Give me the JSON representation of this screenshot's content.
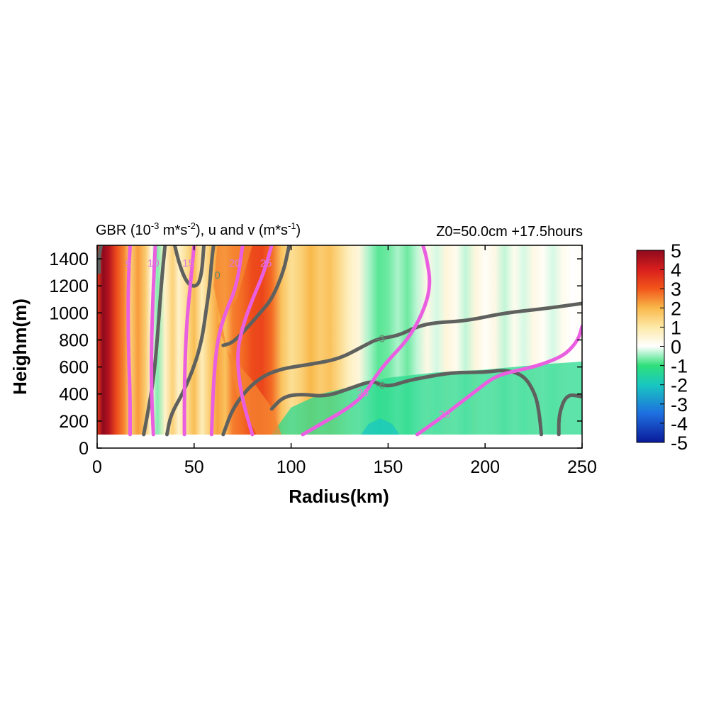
{
  "chart_data": {
    "type": "heatmap",
    "title": "GBR (10-3 m*s-2), u and v (m*s-1)",
    "title_parts": {
      "base1": "GBR (10",
      "sup1": "-3",
      "base2": " m*s",
      "sup2": "-2",
      "base3": "), u and v (m*s",
      "sup3": "-1",
      "base4": ")"
    },
    "subtitle": "Z0=50.0cm  +17.5hours",
    "xlabel": "Radius(km)",
    "ylabel": "Heighm(m)",
    "xlim": [
      0,
      250
    ],
    "ylim": [
      0,
      1500
    ],
    "data_ylim": [
      100,
      1500
    ],
    "xticks": [
      0,
      50,
      100,
      150,
      200,
      250
    ],
    "yticks": [
      0,
      200,
      400,
      600,
      800,
      1000,
      1200,
      1400
    ],
    "colorbar": {
      "ticks": [
        5,
        4,
        3,
        2,
        1,
        0,
        -1,
        -2,
        -3,
        -4,
        -5
      ],
      "range": [
        -5,
        5
      ],
      "stops": [
        {
          "v": -5,
          "color": "#0a1a9a"
        },
        {
          "v": -3.5,
          "color": "#1e6fe0"
        },
        {
          "v": -2,
          "color": "#19c7c0"
        },
        {
          "v": -1,
          "color": "#2fe07a"
        },
        {
          "v": 0,
          "color": "#ffffff"
        },
        {
          "v": 1,
          "color": "#fde9a8"
        },
        {
          "v": 2,
          "color": "#f9b84a"
        },
        {
          "v": 3,
          "color": "#f2561a"
        },
        {
          "v": 4,
          "color": "#d91e1e"
        },
        {
          "v": 5,
          "color": "#8e0a1e"
        }
      ]
    },
    "heatmap_columns": [
      {
        "x": 0,
        "v": 3.5
      },
      {
        "x": 3,
        "v": 5
      },
      {
        "x": 6,
        "v": 4.5
      },
      {
        "x": 10,
        "v": 3.2
      },
      {
        "x": 14,
        "v": 2.5
      },
      {
        "x": 17,
        "v": 1.5
      },
      {
        "x": 21,
        "v": 2.3
      },
      {
        "x": 25,
        "v": 1.6
      },
      {
        "x": 28,
        "v": 0.3
      },
      {
        "x": 31,
        "v": -0.6
      },
      {
        "x": 35,
        "v": 0.6
      },
      {
        "x": 39,
        "v": 1.5
      },
      {
        "x": 42,
        "v": 0.6
      },
      {
        "x": 46,
        "v": 1.2
      },
      {
        "x": 50,
        "v": 1.9
      },
      {
        "x": 54,
        "v": 0.8
      },
      {
        "x": 58,
        "v": 1.6
      },
      {
        "x": 62,
        "v": 2.2
      },
      {
        "x": 66,
        "v": 1.8
      },
      {
        "x": 70,
        "v": 2.6
      },
      {
        "x": 75,
        "v": 2.8
      },
      {
        "x": 80,
        "v": 3.2
      },
      {
        "x": 85,
        "v": 3.3
      },
      {
        "x": 90,
        "v": 2.8
      },
      {
        "x": 95,
        "v": 1.8
      },
      {
        "x": 100,
        "v": 1.2
      },
      {
        "x": 105,
        "v": 1.5
      },
      {
        "x": 110,
        "v": 2.0
      },
      {
        "x": 115,
        "v": 1.6
      },
      {
        "x": 120,
        "v": 1.8
      },
      {
        "x": 125,
        "v": 1.3
      },
      {
        "x": 130,
        "v": 0.7
      },
      {
        "x": 135,
        "v": 0.4
      },
      {
        "x": 140,
        "v": -0.4
      },
      {
        "x": 145,
        "v": -0.8
      },
      {
        "x": 150,
        "v": -0.7
      },
      {
        "x": 155,
        "v": -0.4
      },
      {
        "x": 160,
        "v": -0.7
      },
      {
        "x": 165,
        "v": -0.3
      },
      {
        "x": 170,
        "v": 0.3
      },
      {
        "x": 175,
        "v": -0.2
      },
      {
        "x": 180,
        "v": 0.4
      },
      {
        "x": 185,
        "v": 0.2
      },
      {
        "x": 190,
        "v": -0.3
      },
      {
        "x": 195,
        "v": 0.4
      },
      {
        "x": 200,
        "v": 0.1
      },
      {
        "x": 205,
        "v": 0.3
      },
      {
        "x": 210,
        "v": -0.3
      },
      {
        "x": 215,
        "v": 0.2
      },
      {
        "x": 220,
        "v": -0.2
      },
      {
        "x": 225,
        "v": 0.3
      },
      {
        "x": 230,
        "v": 0.1
      },
      {
        "x": 235,
        "v": -0.2
      },
      {
        "x": 240,
        "v": 0.2
      },
      {
        "x": 245,
        "v": 0.0
      },
      {
        "x": 250,
        "v": 0.1
      }
    ],
    "heatmap_regions": [
      {
        "v": -1.3,
        "points": [
          [
            90,
            100
          ],
          [
            100,
            300
          ],
          [
            115,
            400
          ],
          [
            130,
            450
          ],
          [
            150,
            520
          ],
          [
            175,
            560
          ],
          [
            200,
            580
          ],
          [
            230,
            620
          ],
          [
            250,
            640
          ],
          [
            250,
            100
          ]
        ]
      },
      {
        "v": -2.0,
        "points": [
          [
            136,
            100
          ],
          [
            140,
            180
          ],
          [
            146,
            220
          ],
          [
            152,
            180
          ],
          [
            156,
            100
          ]
        ]
      },
      {
        "v": 2.5,
        "points": [
          [
            62,
            900
          ],
          [
            68,
            700
          ],
          [
            80,
            500
          ],
          [
            90,
            300
          ],
          [
            95,
            100
          ],
          [
            82,
            100
          ],
          [
            72,
            400
          ],
          [
            60,
            1200
          ],
          [
            62,
            1500
          ],
          [
            80,
            1500
          ],
          [
            72,
            1100
          ]
        ]
      }
    ],
    "series": [
      {
        "name": "u",
        "role": "grey",
        "contours": [
          {
            "label": "0",
            "label_at": [
              62,
              1280
            ],
            "points": [
              [
                60,
                1500
              ],
              [
                59,
                1380
              ],
              [
                58,
                1200
              ],
              [
                56,
                1000
              ],
              [
                54,
                800
              ],
              [
                50,
                600
              ],
              [
                44,
                400
              ],
              [
                38,
                250
              ],
              [
                36,
                100
              ]
            ]
          },
          {
            "label": "",
            "points": [
              [
                40,
                1500
              ],
              [
                42,
                1380
              ],
              [
                45,
                1260
              ],
              [
                48,
                1200
              ],
              [
                52,
                1200
              ],
              [
                54,
                1300
              ],
              [
                55,
                1500
              ]
            ]
          },
          {
            "label": "",
            "points": [
              [
                35,
                1500
              ],
              [
                33,
                1200
              ],
              [
                31,
                800
              ],
              [
                29,
                500
              ],
              [
                26,
                250
              ],
              [
                24,
                100
              ]
            ]
          },
          {
            "label": "",
            "points": [
              [
                2,
                1500
              ],
              [
                1,
                1420
              ],
              [
                1,
                1300
              ]
            ]
          },
          {
            "label": "",
            "points": [
              [
                99,
                1500
              ],
              [
                96,
                1300
              ],
              [
                90,
                1100
              ],
              [
                84,
                1000
              ],
              [
                78,
                900
              ],
              [
                70,
                780
              ],
              [
                65,
                760
              ]
            ]
          },
          {
            "label": "-3",
            "label_at": [
              146,
              810
            ],
            "points": [
              [
                65,
                100
              ],
              [
                70,
                300
              ],
              [
                80,
                480
              ],
              [
                92,
                580
              ],
              [
                110,
                620
              ],
              [
                125,
                660
              ],
              [
                138,
                760
              ],
              [
                145,
                810
              ],
              [
                155,
                830
              ],
              [
                165,
                900
              ],
              [
                175,
                930
              ],
              [
                190,
                940
              ],
              [
                210,
                1000
              ],
              [
                230,
                1030
              ],
              [
                250,
                1070
              ]
            ]
          },
          {
            "label": "-6",
            "label_at": [
              146,
              465
            ],
            "points": [
              [
                90,
                290
              ],
              [
                96,
                380
              ],
              [
                105,
                400
              ],
              [
                118,
                380
              ],
              [
                130,
                440
              ],
              [
                142,
                500
              ],
              [
                146,
                465
              ],
              [
                152,
                460
              ],
              [
                160,
                500
              ],
              [
                175,
                540
              ],
              [
                185,
                560
              ],
              [
                200,
                560
              ],
              [
                210,
                580
              ],
              [
                220,
                540
              ],
              [
                226,
                400
              ],
              [
                228,
                250
              ],
              [
                229,
                100
              ]
            ]
          },
          {
            "label": "",
            "points": [
              [
                238,
                100
              ],
              [
                238,
                250
              ],
              [
                242,
                400
              ],
              [
                250,
                380
              ]
            ]
          }
        ]
      },
      {
        "name": "v",
        "role": "magenta",
        "contours": [
          {
            "label": "5",
            "label_at": [
              16,
              1360
            ],
            "points": [
              [
                17,
                1500
              ],
              [
                16,
                1200
              ],
              [
                16,
                800
              ],
              [
                17,
                400
              ],
              [
                17,
                100
              ]
            ]
          },
          {
            "label": "10",
            "label_at": [
              29,
              1370
            ],
            "points": [
              [
                30,
                1500
              ],
              [
                29,
                1200
              ],
              [
                28,
                800
              ],
              [
                28,
                400
              ],
              [
                29,
                100
              ]
            ]
          },
          {
            "label": "15",
            "label_at": [
              47,
              1370
            ],
            "points": [
              [
                50,
                1500
              ],
              [
                48,
                1200
              ],
              [
                46,
                900
              ],
              [
                45,
                500
              ],
              [
                45,
                100
              ]
            ]
          },
          {
            "label": "20",
            "label_at": [
              71,
              1370
            ],
            "points": [
              [
                75,
                1500
              ],
              [
                72,
                1200
              ],
              [
                66,
                1000
              ],
              [
                62,
                800
              ],
              [
                60,
                500
              ],
              [
                59,
                100
              ]
            ]
          },
          {
            "label": "25",
            "label_at": [
              87,
              1370
            ],
            "points": [
              [
                90,
                1500
              ],
              [
                86,
                1300
              ],
              [
                80,
                1100
              ],
              [
                75,
                900
              ],
              [
                72,
                700
              ],
              [
                74,
                400
              ],
              [
                80,
                100
              ]
            ]
          },
          {
            "label": "25",
            "label_at": [
              137,
              410
            ],
            "points": [
              [
                106,
                100
              ],
              [
                118,
                200
              ],
              [
                130,
                300
              ],
              [
                138,
                400
              ],
              [
                143,
                520
              ],
              [
                150,
                650
              ],
              [
                160,
                800
              ],
              [
                168,
                1000
              ],
              [
                172,
                1200
              ],
              [
                170,
                1400
              ],
              [
                168,
                1500
              ]
            ]
          },
          {
            "label": "20",
            "label_at": [
              179,
              250
            ],
            "points": [
              [
                165,
                100
              ],
              [
                175,
                200
              ],
              [
                185,
                310
              ],
              [
                195,
                420
              ],
              [
                205,
                530
              ],
              [
                215,
                570
              ],
              [
                225,
                600
              ],
              [
                235,
                650
              ],
              [
                242,
                700
              ],
              [
                248,
                800
              ],
              [
                250,
                900
              ]
            ]
          }
        ]
      }
    ],
    "contour_colors": {
      "u": "#5f615f",
      "v": "#ea5fe0",
      "u_label": "#5f8f70",
      "v_label": "#e07adf"
    }
  }
}
